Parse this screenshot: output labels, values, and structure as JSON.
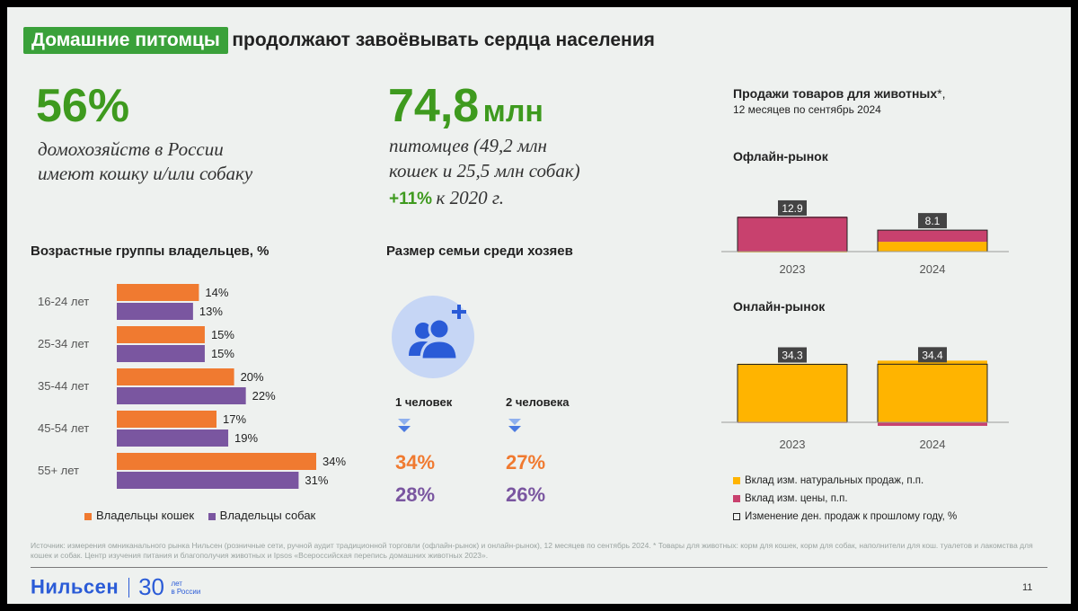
{
  "title": {
    "highlight": "Домашние питомцы",
    "rest": "продолжают завоёвывать сердца населения"
  },
  "stat1": {
    "value": "56%",
    "line1": "домохозяйств в России",
    "line2": "имеют кошку и/или собаку"
  },
  "stat2": {
    "value": "74,8",
    "unit": "млн",
    "line1": "питомцев (49,2 млн",
    "line2": "кошек и 25,5 млн собак)",
    "growth": "+11%",
    "growth_text": "к 2020 г."
  },
  "colors": {
    "cats": "#f07a30",
    "dogs": "#7a56a0",
    "price": "#c8416e",
    "volume": "#ffb400",
    "green": "#3aa13a",
    "brand": "#2a5bd7"
  },
  "chart_data": [
    {
      "type": "bar",
      "orientation": "horizontal",
      "title": "Возрастные группы владельцев, %",
      "categories": [
        "16-24 лет",
        "25-34 лет",
        "35-44 лет",
        "45-54 лет",
        "55+ лет"
      ],
      "series": [
        {
          "name": "Владельцы кошек",
          "values": [
            14,
            15,
            20,
            17,
            34
          ],
          "labels": [
            "14%",
            "15%",
            "20%",
            "17%",
            "34%"
          ]
        },
        {
          "name": "Владельцы собак",
          "values": [
            13,
            15,
            22,
            19,
            31
          ],
          "labels": [
            "13%",
            "15%",
            "22%",
            "19%",
            "31%"
          ]
        }
      ],
      "xlim": [
        0,
        34
      ]
    },
    {
      "type": "bar",
      "title": "Офлайн-рынок",
      "categories": [
        "2023",
        "2024"
      ],
      "series": [
        {
          "name": "Вклад изм. натуральных продаж, п.п.",
          "values": [
            -0.3,
            3.7
          ]
        },
        {
          "name": "Вклад изм. цены, п.п.",
          "values": [
            13.2,
            4.4
          ]
        },
        {
          "name": "Изменение ден. продаж к прошлому году, %",
          "values": [
            12.9,
            8.1
          ],
          "labels": [
            "12.9",
            "8.1"
          ]
        }
      ]
    },
    {
      "type": "bar",
      "title": "Онлайн-рынок",
      "categories": [
        "2023",
        "2024"
      ],
      "series": [
        {
          "name": "Вклад изм. натуральных продаж, п.п.",
          "values": [
            34.7,
            36.5
          ]
        },
        {
          "name": "Вклад изм. цены, п.п.",
          "values": [
            -0.4,
            -2.1
          ]
        },
        {
          "name": "Изменение ден. продаж к прошлому году, %",
          "values": [
            34.3,
            34.4
          ],
          "labels": [
            "34.3",
            "34.4"
          ]
        }
      ]
    }
  ],
  "family": {
    "title": "Размер семьи среди хозяев",
    "columns": [
      {
        "label": "1 человек",
        "cats": "34%",
        "dogs": "28%"
      },
      {
        "label": "2 человека",
        "cats": "27%",
        "dogs": "26%"
      }
    ]
  },
  "sales": {
    "title_bold": "Продажи товаров для животных",
    "title_star": "*,",
    "subtitle": "12 месяцев по сентябрь 2024"
  },
  "legend": {
    "cats": "Владельцы кошек",
    "dogs": "Владельцы собак",
    "volume": "Вклад изм. натуральных продаж, п.п.",
    "price": "Вклад изм. цены, п.п.",
    "total": "Изменение ден. продаж к прошлому году, %"
  },
  "footer": {
    "source": "Источник: измерения омниканального рынка Нильсен (розничные сети, ручной аудит традиционной торговли (офлайн-рынок) и онлайн-рынок), 12 месяцев по сентябрь 2024. * Товары для животных: корм для кошек, корм для собак, наполнители для кош. туалетов и лакомства для кошек и собак. Центр изучения питания и благополучия животных и Ipsos «Всероссийская перепись домашних животных 2023».",
    "brand": "Нильсен",
    "years": "30",
    "years_line1": "лет",
    "years_line2": "в России",
    "page": "11"
  }
}
